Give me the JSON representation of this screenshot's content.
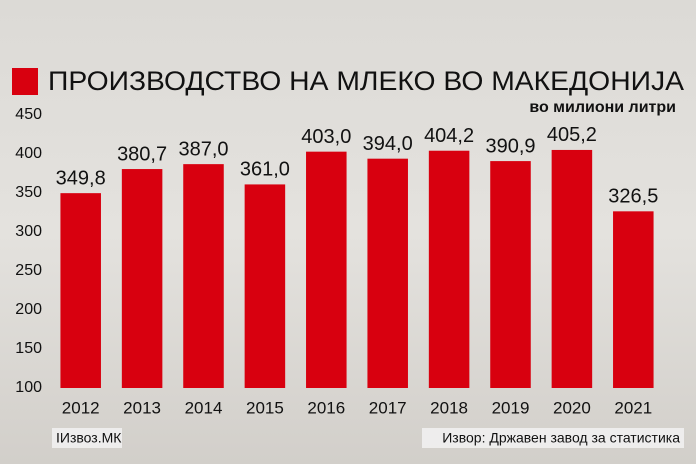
{
  "chart_data": {
    "type": "bar",
    "title": "ПРОИЗВОДСТВО НА МЛЕКО ВО МАКЕДОНИЈА",
    "subtitle": "во милиони литри",
    "categories": [
      "2012",
      "2013",
      "2014",
      "2015",
      "2016",
      "2017",
      "2018",
      "2019",
      "2020",
      "2021"
    ],
    "values": [
      349.8,
      380.7,
      387.0,
      361.0,
      403.0,
      394.0,
      404.2,
      390.9,
      405.2,
      326.5
    ],
    "value_labels": [
      "349,8",
      "380,7",
      "387,0",
      "361,0",
      "403,0",
      "394,0",
      "404,2",
      "390,9",
      "405,2",
      "326,5"
    ],
    "color": "#d8000f",
    "ylim": [
      100,
      450
    ],
    "yticks": [
      100,
      150,
      200,
      250,
      300,
      350,
      400,
      450
    ],
    "grid": false,
    "footer_left": "IИзвоз.МК",
    "source": "Извор: Државен завод за статистика"
  }
}
